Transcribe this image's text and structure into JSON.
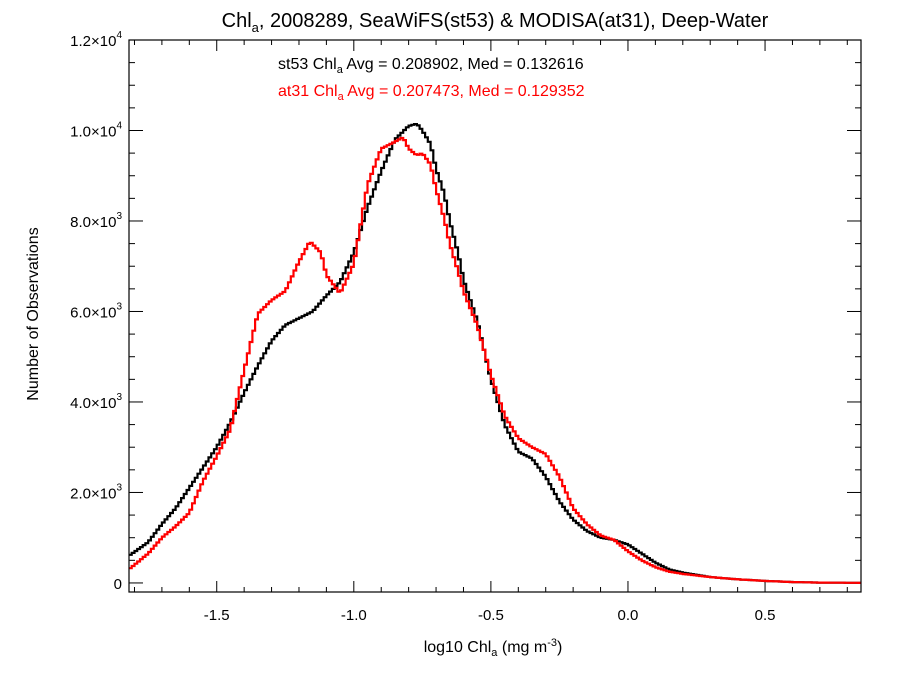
{
  "chart_data": {
    "type": "line",
    "title_parts": {
      "main": "Chl",
      "sub": "a",
      "rest": ", 2008289, SeaWiFS(st53) & MODISA(at31), Deep-Water"
    },
    "xlabel_parts": {
      "main": "log10 Chl",
      "sub": "a",
      "rest": " (mg m",
      "sup": "-3",
      "end": ")"
    },
    "ylabel": "Number of Observations",
    "xlim": [
      -1.82,
      0.85
    ],
    "ylim": [
      -200,
      12000
    ],
    "x_ticks": [
      -1.5,
      -1.0,
      -0.5,
      0.0,
      0.5
    ],
    "x_tick_labels": [
      "-1.5",
      "-1.0",
      "-0.5",
      "0.0",
      "0.5"
    ],
    "y_ticks": [
      0,
      2000,
      4000,
      6000,
      8000,
      10000,
      12000
    ],
    "y_tick_labels": [
      {
        "mant": "0",
        "exp": ""
      },
      {
        "mant": "2.0×10",
        "exp": "3"
      },
      {
        "mant": "4.0×10",
        "exp": "3"
      },
      {
        "mant": "6.0×10",
        "exp": "3"
      },
      {
        "mant": "8.0×10",
        "exp": "3"
      },
      {
        "mant": "1.0×10",
        "exp": "4"
      },
      {
        "mant": "1.2×10",
        "exp": "4"
      }
    ],
    "grid": false,
    "annotations": [
      {
        "prefix": "st53 Chl",
        "sub": "a",
        "text": " Avg = 0.208902, Med = 0.132616",
        "color": "#000000"
      },
      {
        "prefix": "at31 Chl",
        "sub": "a",
        "text": " Avg = 0.207473, Med = 0.129352",
        "color": "#ff0000"
      }
    ],
    "series": [
      {
        "color": "#000000",
        "points": [
          [
            -1.82,
            600
          ],
          [
            -1.75,
            900
          ],
          [
            -1.7,
            1300
          ],
          [
            -1.65,
            1650
          ],
          [
            -1.6,
            2100
          ],
          [
            -1.55,
            2550
          ],
          [
            -1.5,
            3000
          ],
          [
            -1.45,
            3550
          ],
          [
            -1.4,
            4200
          ],
          [
            -1.35,
            4800
          ],
          [
            -1.3,
            5350
          ],
          [
            -1.25,
            5700
          ],
          [
            -1.2,
            5850
          ],
          [
            -1.15,
            6000
          ],
          [
            -1.1,
            6350
          ],
          [
            -1.05,
            6650
          ],
          [
            -1.0,
            7300
          ],
          [
            -0.95,
            8300
          ],
          [
            -0.9,
            9100
          ],
          [
            -0.85,
            9800
          ],
          [
            -0.8,
            10100
          ],
          [
            -0.77,
            10150
          ],
          [
            -0.75,
            10000
          ],
          [
            -0.72,
            9700
          ],
          [
            -0.7,
            9150
          ],
          [
            -0.67,
            8600
          ],
          [
            -0.65,
            8000
          ],
          [
            -0.62,
            7300
          ],
          [
            -0.6,
            6700
          ],
          [
            -0.55,
            5800
          ],
          [
            -0.5,
            4500
          ],
          [
            -0.45,
            3500
          ],
          [
            -0.4,
            2900
          ],
          [
            -0.35,
            2750
          ],
          [
            -0.3,
            2350
          ],
          [
            -0.25,
            1800
          ],
          [
            -0.2,
            1400
          ],
          [
            -0.15,
            1150
          ],
          [
            -0.1,
            1000
          ],
          [
            -0.05,
            950
          ],
          [
            0.0,
            850
          ],
          [
            0.05,
            650
          ],
          [
            0.1,
            450
          ],
          [
            0.15,
            300
          ],
          [
            0.2,
            230
          ],
          [
            0.3,
            130
          ],
          [
            0.4,
            80
          ],
          [
            0.5,
            45
          ],
          [
            0.6,
            20
          ],
          [
            0.7,
            8
          ],
          [
            0.85,
            2
          ]
        ]
      },
      {
        "color": "#ff0000",
        "points": [
          [
            -1.82,
            300
          ],
          [
            -1.75,
            650
          ],
          [
            -1.7,
            1000
          ],
          [
            -1.65,
            1250
          ],
          [
            -1.6,
            1550
          ],
          [
            -1.55,
            2250
          ],
          [
            -1.5,
            2800
          ],
          [
            -1.45,
            3400
          ],
          [
            -1.42,
            4200
          ],
          [
            -1.38,
            5200
          ],
          [
            -1.35,
            5950
          ],
          [
            -1.3,
            6250
          ],
          [
            -1.25,
            6450
          ],
          [
            -1.2,
            7100
          ],
          [
            -1.16,
            7550
          ],
          [
            -1.12,
            7300
          ],
          [
            -1.1,
            6800
          ],
          [
            -1.05,
            6400
          ],
          [
            -1.0,
            7050
          ],
          [
            -0.95,
            8800
          ],
          [
            -0.9,
            9600
          ],
          [
            -0.85,
            9750
          ],
          [
            -0.82,
            9850
          ],
          [
            -0.8,
            9600
          ],
          [
            -0.77,
            9450
          ],
          [
            -0.75,
            9500
          ],
          [
            -0.72,
            9250
          ],
          [
            -0.7,
            8700
          ],
          [
            -0.67,
            8050
          ],
          [
            -0.65,
            7500
          ],
          [
            -0.62,
            6900
          ],
          [
            -0.6,
            6450
          ],
          [
            -0.55,
            5700
          ],
          [
            -0.5,
            4600
          ],
          [
            -0.45,
            3700
          ],
          [
            -0.4,
            3200
          ],
          [
            -0.35,
            3000
          ],
          [
            -0.3,
            2850
          ],
          [
            -0.25,
            2350
          ],
          [
            -0.2,
            1650
          ],
          [
            -0.15,
            1300
          ],
          [
            -0.1,
            1050
          ],
          [
            -0.05,
            950
          ],
          [
            0.0,
            700
          ],
          [
            0.05,
            500
          ],
          [
            0.1,
            350
          ],
          [
            0.15,
            250
          ],
          [
            0.2,
            200
          ],
          [
            0.3,
            130
          ],
          [
            0.4,
            80
          ],
          [
            0.5,
            45
          ],
          [
            0.6,
            20
          ],
          [
            0.7,
            8
          ],
          [
            0.85,
            2
          ]
        ]
      }
    ]
  }
}
